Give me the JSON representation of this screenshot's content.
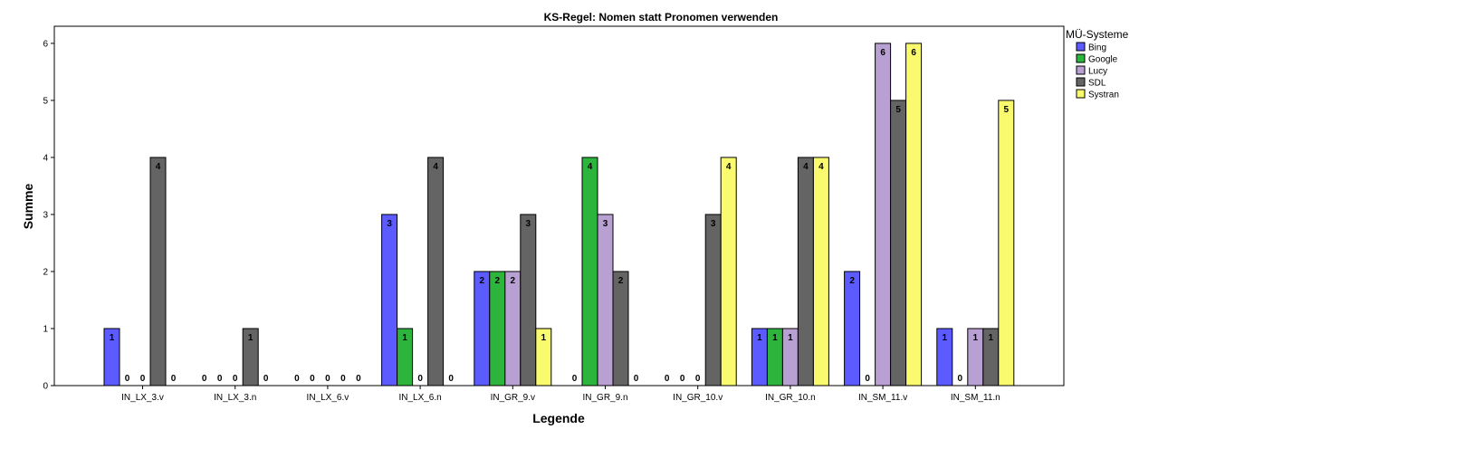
{
  "chart_data": {
    "type": "bar",
    "title": "KS-Regel: Nomen statt Pronomen verwenden",
    "xlabel": "Legende",
    "ylabel": "Summe",
    "ylim": [
      0,
      6.3
    ],
    "yticks": [
      0,
      1,
      2,
      3,
      4,
      5,
      6
    ],
    "grid": false,
    "legend": {
      "title": "MÜ-Systeme",
      "placement": "top-right, outside plot"
    },
    "categories": [
      "IN_LX_3.v",
      "IN_LX_3.n",
      "IN_LX_6.v",
      "IN_LX_6.n",
      "IN_GR_9.v",
      "IN_GR_9.n",
      "IN_GR_10.v",
      "IN_GR_10.n",
      "IN_SM_11.v",
      "IN_SM_11.n"
    ],
    "series": [
      {
        "name": "Bing",
        "color": "#5b5bff",
        "values": [
          1,
          0,
          0,
          3,
          2,
          0,
          0,
          1,
          2,
          1
        ]
      },
      {
        "name": "Google",
        "color": "#2db43c",
        "values": [
          0,
          0,
          0,
          1,
          2,
          4,
          0,
          1,
          0,
          0
        ]
      },
      {
        "name": "Lucy",
        "color": "#b9a0d2",
        "values": [
          0,
          0,
          0,
          0,
          2,
          3,
          0,
          1,
          6,
          1
        ]
      },
      {
        "name": "SDL",
        "color": "#646464",
        "values": [
          4,
          1,
          0,
          4,
          3,
          2,
          3,
          4,
          5,
          1
        ]
      },
      {
        "name": "Systran",
        "color": "#fafa6e",
        "values": [
          0,
          0,
          0,
          0,
          1,
          0,
          4,
          4,
          6,
          5
        ]
      }
    ]
  }
}
